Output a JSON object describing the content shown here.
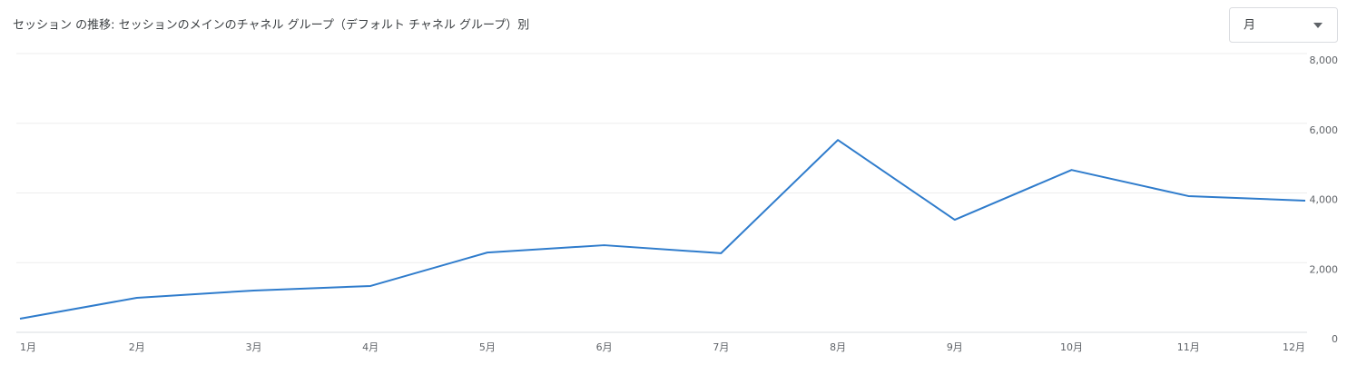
{
  "chart_data": {
    "type": "line",
    "title": "セッション の推移: セッションのメインのチャネル グループ（デフォルト チャネル グループ）別",
    "categories": [
      "1月",
      "2月",
      "3月",
      "4月",
      "5月",
      "6月",
      "7月",
      "8月",
      "9月",
      "10月",
      "11月",
      "12月"
    ],
    "values": [
      390,
      990,
      1200,
      1330,
      2290,
      2500,
      2270,
      5520,
      3230,
      4660,
      3910,
      3780
    ],
    "color": "#2f7ccc",
    "ylim": [
      0,
      8000
    ],
    "yticks": [
      0,
      {
        "value": 2000,
        "label": "2,000"
      },
      {
        "value": 4000,
        "label": "4,000"
      },
      {
        "value": 6000,
        "label": "6,000"
      },
      {
        "value": 8000,
        "label": "8,000"
      }
    ],
    "grid": true
  },
  "period_selector": "月"
}
